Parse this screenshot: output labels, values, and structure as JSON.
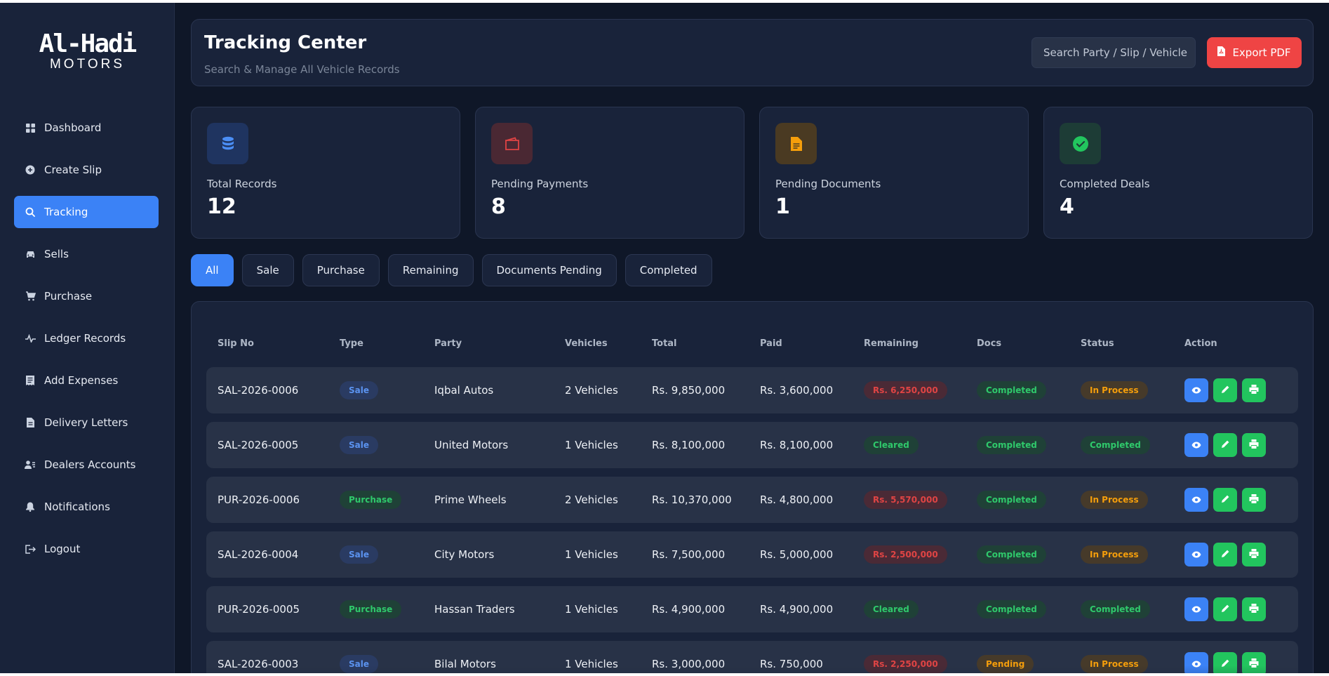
{
  "brand": {
    "line1": "Al-Hadi",
    "line2": "MOTORS"
  },
  "sidebar": {
    "items": [
      {
        "label": "Dashboard",
        "icon": "grid-icon",
        "active": false
      },
      {
        "label": "Create Slip",
        "icon": "plus-circle-icon",
        "active": false
      },
      {
        "label": "Tracking",
        "icon": "search-icon",
        "active": true
      },
      {
        "label": "Sells",
        "icon": "car-icon",
        "active": false
      },
      {
        "label": "Purchase",
        "icon": "cart-icon",
        "active": false
      },
      {
        "label": "Ledger Records",
        "icon": "pulse-icon",
        "active": false
      },
      {
        "label": "Add Expenses",
        "icon": "receipt-icon",
        "active": false
      },
      {
        "label": "Delivery Letters",
        "icon": "file-icon",
        "active": false
      },
      {
        "label": "Dealers Accounts",
        "icon": "users-icon",
        "active": false
      },
      {
        "label": "Notifications",
        "icon": "bell-icon",
        "active": false
      },
      {
        "label": "Logout",
        "icon": "logout-icon",
        "active": false
      }
    ]
  },
  "header": {
    "title": "Tracking Center",
    "subtitle": "Search & Manage All Vehicle Records",
    "search_placeholder": "Search Party / Slip / Vehicle",
    "export_label": "Export PDF"
  },
  "stats": [
    {
      "label": "Total Records",
      "value": "12",
      "icon": "database-icon",
      "color": "#3b82f6"
    },
    {
      "label": "Pending Payments",
      "value": "8",
      "icon": "wallet-icon",
      "color": "#ef4444"
    },
    {
      "label": "Pending Documents",
      "value": "1",
      "icon": "document-icon",
      "color": "#f59e0b"
    },
    {
      "label": "Completed Deals",
      "value": "4",
      "icon": "check-circle-icon",
      "color": "#22c55e"
    }
  ],
  "filters": [
    {
      "label": "All",
      "active": true
    },
    {
      "label": "Sale",
      "active": false
    },
    {
      "label": "Purchase",
      "active": false
    },
    {
      "label": "Remaining",
      "active": false
    },
    {
      "label": "Documents Pending",
      "active": false
    },
    {
      "label": "Completed",
      "active": false
    }
  ],
  "table": {
    "columns": [
      "Slip No",
      "Type",
      "Party",
      "Vehicles",
      "Total",
      "Paid",
      "Remaining",
      "Docs",
      "Status",
      "Action"
    ],
    "rows": [
      {
        "slip": "SAL-2026-0006",
        "type": "Sale",
        "party": "Iqbal Autos",
        "vehicles": "2 Vehicles",
        "total": "Rs. 9,850,000",
        "paid": "Rs. 3,600,000",
        "remaining": "Rs. 6,250,000",
        "docs": "Completed",
        "status": "In Process"
      },
      {
        "slip": "SAL-2026-0005",
        "type": "Sale",
        "party": "United Motors",
        "vehicles": "1 Vehicles",
        "total": "Rs. 8,100,000",
        "paid": "Rs. 8,100,000",
        "remaining": "Cleared",
        "docs": "Completed",
        "status": "Completed"
      },
      {
        "slip": "PUR-2026-0006",
        "type": "Purchase",
        "party": "Prime Wheels",
        "vehicles": "2 Vehicles",
        "total": "Rs. 10,370,000",
        "paid": "Rs. 4,800,000",
        "remaining": "Rs. 5,570,000",
        "docs": "Completed",
        "status": "In Process"
      },
      {
        "slip": "SAL-2026-0004",
        "type": "Sale",
        "party": "City Motors",
        "vehicles": "1 Vehicles",
        "total": "Rs. 7,500,000",
        "paid": "Rs. 5,000,000",
        "remaining": "Rs. 2,500,000",
        "docs": "Completed",
        "status": "In Process"
      },
      {
        "slip": "PUR-2026-0005",
        "type": "Purchase",
        "party": "Hassan Traders",
        "vehicles": "1 Vehicles",
        "total": "Rs. 4,900,000",
        "paid": "Rs. 4,900,000",
        "remaining": "Cleared",
        "docs": "Completed",
        "status": "Completed"
      },
      {
        "slip": "SAL-2026-0003",
        "type": "Sale",
        "party": "Bilal Motors",
        "vehicles": "1 Vehicles",
        "total": "Rs. 3,000,000",
        "paid": "Rs. 750,000",
        "remaining": "Rs. 2,250,000",
        "docs": "Pending",
        "status": "In Process"
      }
    ]
  }
}
